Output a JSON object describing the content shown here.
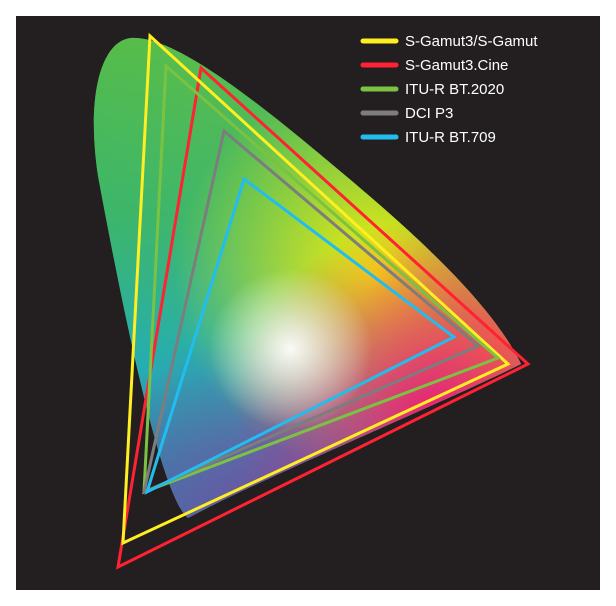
{
  "legend": [
    {
      "label": "S-Gamut3/S-Gamut",
      "color": "#ffee22"
    },
    {
      "label": "S-Gamut3.Cine",
      "color": "#ff2233"
    },
    {
      "label": "ITU-R BT.2020",
      "color": "#7cc242"
    },
    {
      "label": "DCI P3",
      "color": "#7d7d7d"
    },
    {
      "label": "ITU-R BT.709",
      "color": "#22bdef"
    }
  ],
  "colors": {
    "background": "#231f20",
    "white_point": "#ffffff"
  },
  "icons": [
    "chromaticity-locus",
    "gamut-triangle"
  ]
}
